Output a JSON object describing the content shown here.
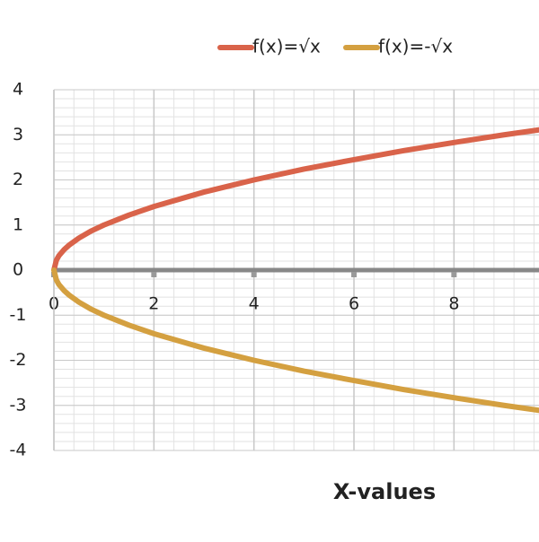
{
  "chart_data": {
    "type": "line",
    "x_label": "X-values",
    "x": [
      0,
      0.05,
      0.1,
      0.2,
      0.3,
      0.5,
      0.75,
      1,
      1.5,
      2,
      3,
      4,
      5,
      6,
      7,
      8,
      9,
      9.7
    ],
    "series": [
      {
        "name": "f(x)=√x",
        "color": "#d9634a",
        "values": [
          0,
          0.22,
          0.32,
          0.45,
          0.55,
          0.71,
          0.87,
          1,
          1.22,
          1.41,
          1.73,
          2,
          2.24,
          2.45,
          2.65,
          2.83,
          3,
          3.11
        ]
      },
      {
        "name": "f(x)=-√x",
        "color": "#d4a040",
        "values": [
          0,
          -0.22,
          -0.32,
          -0.45,
          -0.55,
          -0.71,
          -0.87,
          -1,
          -1.22,
          -1.41,
          -1.73,
          -2,
          -2.24,
          -2.45,
          -2.65,
          -2.83,
          -3,
          -3.11
        ]
      }
    ],
    "xlim": [
      0,
      9.7
    ],
    "ylim": [
      -4,
      4
    ],
    "xticks": [
      0,
      2,
      4,
      6,
      8
    ],
    "yticks": [
      -4,
      -3,
      -2,
      -1,
      0,
      1,
      2,
      3,
      4
    ],
    "grid": true,
    "legend": "top"
  }
}
